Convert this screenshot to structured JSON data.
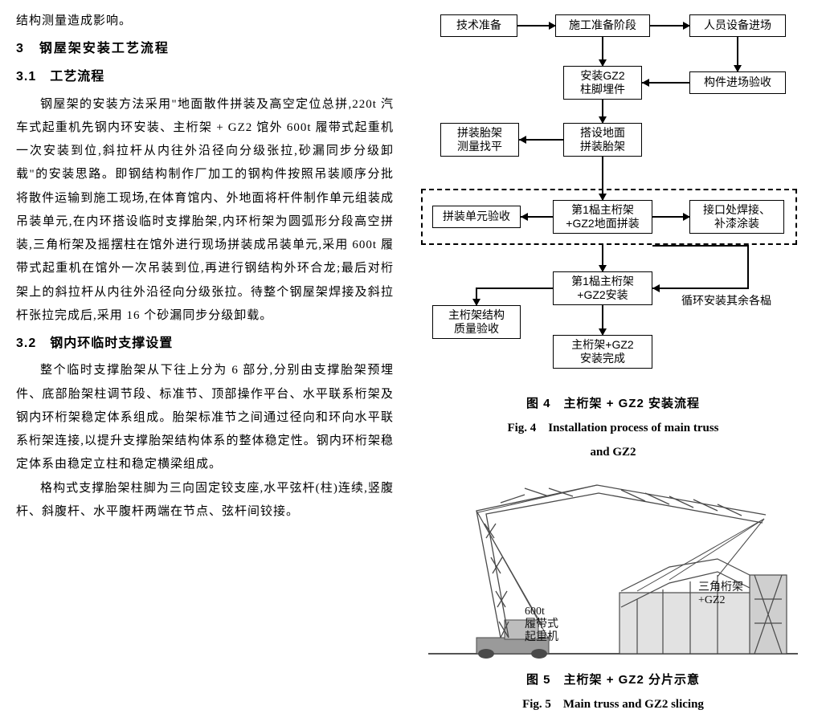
{
  "left": {
    "l0": "结构测量造成影响。",
    "h3": "3　钢屋架安装工艺流程",
    "h31": "3.1　工艺流程",
    "p1": "钢屋架的安装方法采用\"地面散件拼装及高空定位总拼,220t 汽车式起重机先钢内环安装、主桁架 + GZ2 馆外 600t 履带式起重机一次安装到位,斜拉杆从内往外沿径向分级张拉,砂漏同步分级卸载\"的安装思路。即钢结构制作厂加工的钢构件按照吊装顺序分批将散件运输到施工现场,在体育馆内、外地面将杆件制作单元组装成吊装单元,在内环搭设临时支撑胎架,内环桁架为圆弧形分段高空拼装,三角桁架及摇摆柱在馆外进行现场拼装成吊装单元,采用 600t 履带式起重机在馆外一次吊装到位,再进行钢结构外环合龙;最后对桁架上的斜拉杆从内往外沿径向分级张拉。待整个钢屋架焊接及斜拉杆张拉完成后,采用 16 个砂漏同步分级卸载。",
    "h32": "3.2　钢内环临时支撑设置",
    "p2": "整个临时支撑胎架从下往上分为 6 部分,分别由支撑胎架预埋件、底部胎架柱调节段、标准节、顶部操作平台、水平联系桁架及钢内环桁架稳定体系组成。胎架标准节之间通过径向和环向水平联系桁架连接,以提升支撑胎架结构体系的整体稳定性。钢内环桁架稳定体系由稳定立柱和稳定横梁组成。",
    "p3": "格构式支撑胎架柱脚为三向固定铰支座,水平弦杆(柱)连续,竖腹杆、斜腹杆、水平腹杆两端在节点、弦杆间铰接。"
  },
  "flow": {
    "b1": "技术准备",
    "b2": "施工准备阶段",
    "b3": "人员设备进场",
    "b4": "安装GZ2\n柱脚埋件",
    "b5": "构件进场验收",
    "b6": "拼装胎架\n测量找平",
    "b7": "搭设地面\n拼装胎架",
    "b8": "拼装单元验收",
    "b9": "第1榀主桁架\n+GZ2地面拼装",
    "b10": "接口处焊接、\n补漆涂装",
    "b11": "第1榀主桁架\n+GZ2安装",
    "b12": "主桁架结构\n质量验收",
    "b13": "主桁架+GZ2\n安装完成",
    "loop": "循环安装其余各榀"
  },
  "fig4": {
    "cn": "图 4　主桁架 + GZ2 安装流程",
    "en1": "Fig. 4　Installation process of main truss",
    "en2": "and GZ2"
  },
  "crane": {
    "l1": "600t\n履带式\n起重机",
    "l2": "三角桁架\n+GZ2"
  },
  "fig5": {
    "cn": "图 5　主桁架 + GZ2 分片示意",
    "en": "Fig. 5　Main truss and GZ2 slicing"
  },
  "colors": {
    "text": "#000000",
    "bg": "#ffffff",
    "crane_gray": "#9a9a9a",
    "crane_dark": "#4a4a4a"
  }
}
